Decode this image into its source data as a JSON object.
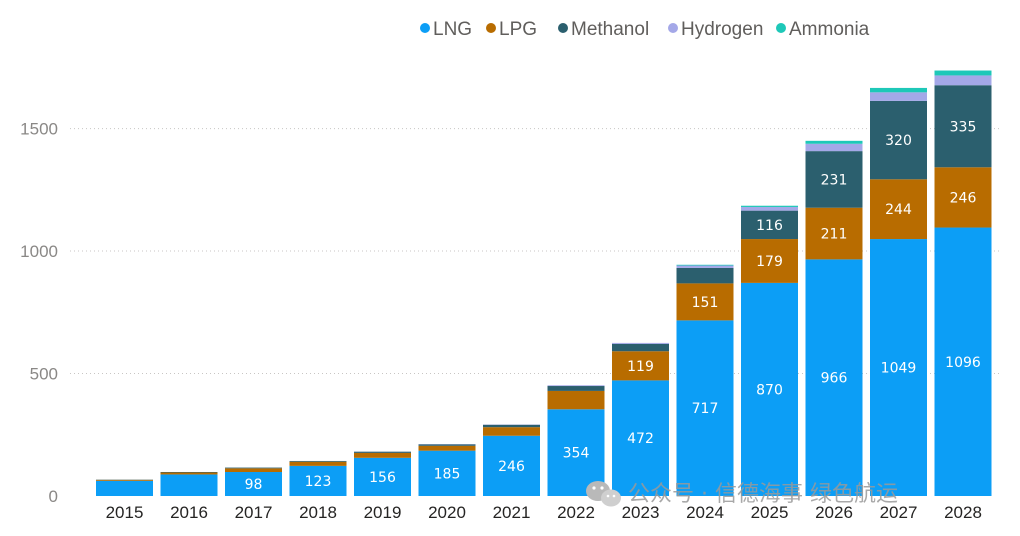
{
  "chart_data": {
    "type": "bar",
    "stacked": true,
    "categories": [
      "2015",
      "2016",
      "2017",
      "2018",
      "2019",
      "2020",
      "2021",
      "2022",
      "2023",
      "2024",
      "2025",
      "2026",
      "2027",
      "2028"
    ],
    "series": [
      {
        "name": "LNG",
        "color": "#0c9ef6",
        "values": [
          62,
          88,
          98,
          123,
          156,
          185,
          246,
          354,
          472,
          717,
          870,
          966,
          1049,
          1096
        ]
      },
      {
        "name": "LPG",
        "color": "#b86c00",
        "values": [
          4,
          8,
          15,
          17,
          20,
          20,
          35,
          75,
          119,
          151,
          179,
          211,
          244,
          246
        ]
      },
      {
        "name": "Methanol",
        "color": "#2b5f6e",
        "values": [
          1,
          2,
          3,
          3,
          5,
          6,
          10,
          20,
          30,
          63,
          116,
          231,
          320,
          335
        ]
      },
      {
        "name": "Hydrogen",
        "color": "#a4a8e8",
        "values": [
          0,
          0,
          0,
          0,
          0,
          1,
          1,
          3,
          4,
          10,
          15,
          30,
          35,
          40
        ]
      },
      {
        "name": "Ammonia",
        "color": "#1ec8b8",
        "values": [
          0,
          0,
          0,
          0,
          0,
          0,
          0,
          0,
          0,
          3,
          5,
          12,
          18,
          20
        ]
      }
    ],
    "labels_shown": {
      "LNG": [
        null,
        null,
        98,
        123,
        156,
        185,
        246,
        354,
        472,
        717,
        870,
        966,
        1049,
        1096
      ],
      "LPG": [
        null,
        null,
        null,
        null,
        null,
        null,
        null,
        null,
        119,
        151,
        179,
        211,
        244,
        246
      ],
      "Methanol": [
        null,
        null,
        null,
        null,
        null,
        null,
        null,
        null,
        null,
        null,
        116,
        231,
        320,
        335
      ]
    },
    "yticks": [
      0,
      500,
      1000,
      1500
    ],
    "ylim": [
      0,
      1780
    ],
    "grid": true,
    "legend_position": "top-right",
    "title": "",
    "xlabel": "",
    "ylabel": ""
  },
  "watermark": {
    "text": "公众号 · 信德海事 绿色航运",
    "icon": "wechat-icon"
  }
}
